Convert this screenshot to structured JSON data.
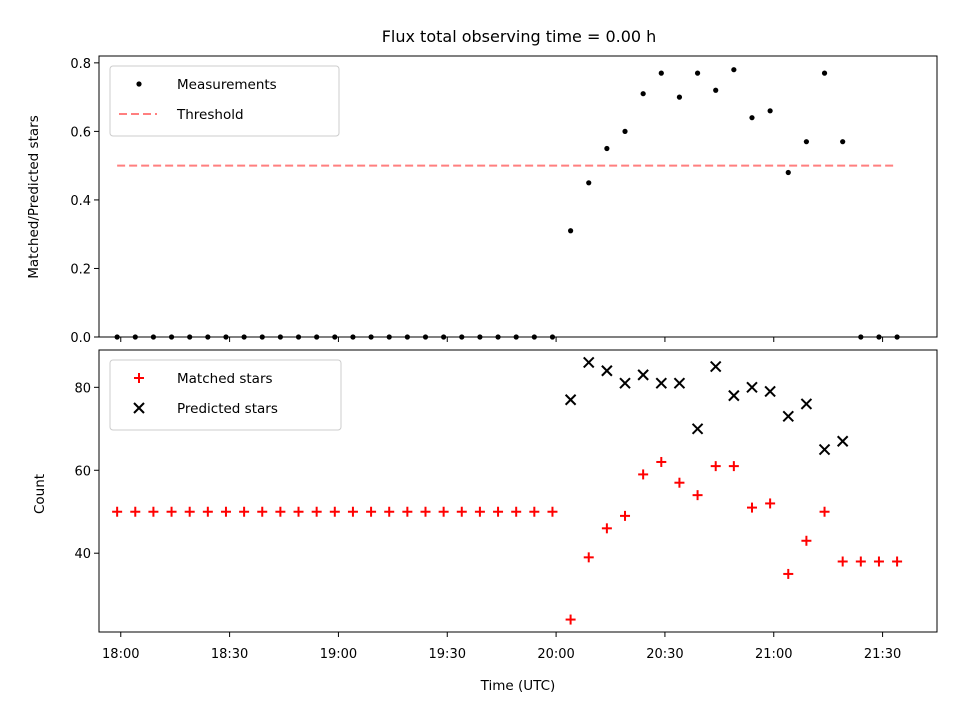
{
  "chart_data": [
    {
      "type": "scatter",
      "title": "Flux total observing time = 0.00 h",
      "xlabel": "",
      "ylabel": "Matched/Predicted stars",
      "ylim": [
        0,
        0.82
      ],
      "yticks": [
        "0.0",
        "0.2",
        "0.4",
        "0.6",
        "0.8"
      ],
      "ytick_values": [
        0,
        0.2,
        0.4,
        0.6,
        0.8
      ],
      "xlim_minutes_since_18": [
        -6,
        225
      ],
      "legend_position": "top-left",
      "series": [
        {
          "name": "Measurements",
          "marker": "dot",
          "color": "#000000",
          "x": [
            "17:59",
            "18:04",
            "18:09",
            "18:14",
            "18:19",
            "18:24",
            "18:29",
            "18:34",
            "18:39",
            "18:44",
            "18:49",
            "18:54",
            "18:59",
            "19:04",
            "19:09",
            "19:14",
            "19:19",
            "19:24",
            "19:29",
            "19:34",
            "19:39",
            "19:44",
            "19:49",
            "19:54",
            "19:59",
            "20:04",
            "20:09",
            "20:14",
            "20:19",
            "20:24",
            "20:29",
            "20:34",
            "20:39",
            "20:44",
            "20:49",
            "20:54",
            "20:59",
            "21:04",
            "21:09",
            "21:14",
            "21:19",
            "21:24",
            "21:29",
            "21:34"
          ],
          "y": [
            0,
            0,
            0,
            0,
            0,
            0,
            0,
            0,
            0,
            0,
            0,
            0,
            0,
            0,
            0,
            0,
            0,
            0,
            0,
            0,
            0,
            0,
            0,
            0,
            0,
            0.31,
            0.45,
            0.55,
            0.6,
            0.71,
            0.77,
            0.7,
            0.77,
            0.72,
            0.78,
            0.64,
            0.66,
            0.48,
            0.57,
            0.77,
            0.57,
            0,
            0,
            0
          ]
        },
        {
          "name": "Threshold",
          "marker": "dashed-line",
          "color": "#ff7f7f",
          "x": [
            "17:59",
            "21:34"
          ],
          "y": [
            0.5,
            0.5
          ]
        }
      ]
    },
    {
      "type": "scatter",
      "title": "",
      "xlabel": "Time (UTC)",
      "ylabel": "Count",
      "ylim": [
        21,
        89
      ],
      "yticks": [
        "40",
        "60",
        "80"
      ],
      "ytick_values": [
        40,
        60,
        80
      ],
      "xticks": [
        "18:00",
        "18:30",
        "19:00",
        "19:30",
        "20:00",
        "20:30",
        "21:00",
        "21:30"
      ],
      "xtick_values": [
        0,
        30,
        60,
        90,
        120,
        150,
        180,
        210
      ],
      "xlim_minutes_since_18": [
        -6,
        225
      ],
      "legend_position": "top-left",
      "series": [
        {
          "name": "Matched stars",
          "marker": "plus",
          "color": "#ff0000",
          "x": [
            "17:59",
            "18:04",
            "18:09",
            "18:14",
            "18:19",
            "18:24",
            "18:29",
            "18:34",
            "18:39",
            "18:44",
            "18:49",
            "18:54",
            "18:59",
            "19:04",
            "19:09",
            "19:14",
            "19:19",
            "19:24",
            "19:29",
            "19:34",
            "19:39",
            "19:44",
            "19:49",
            "19:54",
            "19:59",
            "20:04",
            "20:09",
            "20:14",
            "20:19",
            "20:24",
            "20:29",
            "20:34",
            "20:39",
            "20:44",
            "20:49",
            "20:54",
            "20:59",
            "21:04",
            "21:09",
            "21:14",
            "21:19",
            "21:24",
            "21:29",
            "21:34"
          ],
          "y": [
            50,
            50,
            50,
            50,
            50,
            50,
            50,
            50,
            50,
            50,
            50,
            50,
            50,
            50,
            50,
            50,
            50,
            50,
            50,
            50,
            50,
            50,
            50,
            50,
            50,
            24,
            39,
            46,
            49,
            59,
            62,
            57,
            54,
            61,
            61,
            51,
            52,
            35,
            43,
            50,
            38,
            38,
            38,
            38
          ]
        },
        {
          "name": "Predicted stars",
          "marker": "x",
          "color": "#000000",
          "x": [
            "20:04",
            "20:09",
            "20:14",
            "20:19",
            "20:24",
            "20:29",
            "20:34",
            "20:39",
            "20:44",
            "20:49",
            "20:54",
            "20:59",
            "21:04",
            "21:09",
            "21:14",
            "21:19"
          ],
          "y": [
            77,
            86,
            84,
            81,
            83,
            81,
            81,
            70,
            85,
            78,
            80,
            79,
            73,
            76,
            65,
            67
          ]
        }
      ]
    }
  ]
}
